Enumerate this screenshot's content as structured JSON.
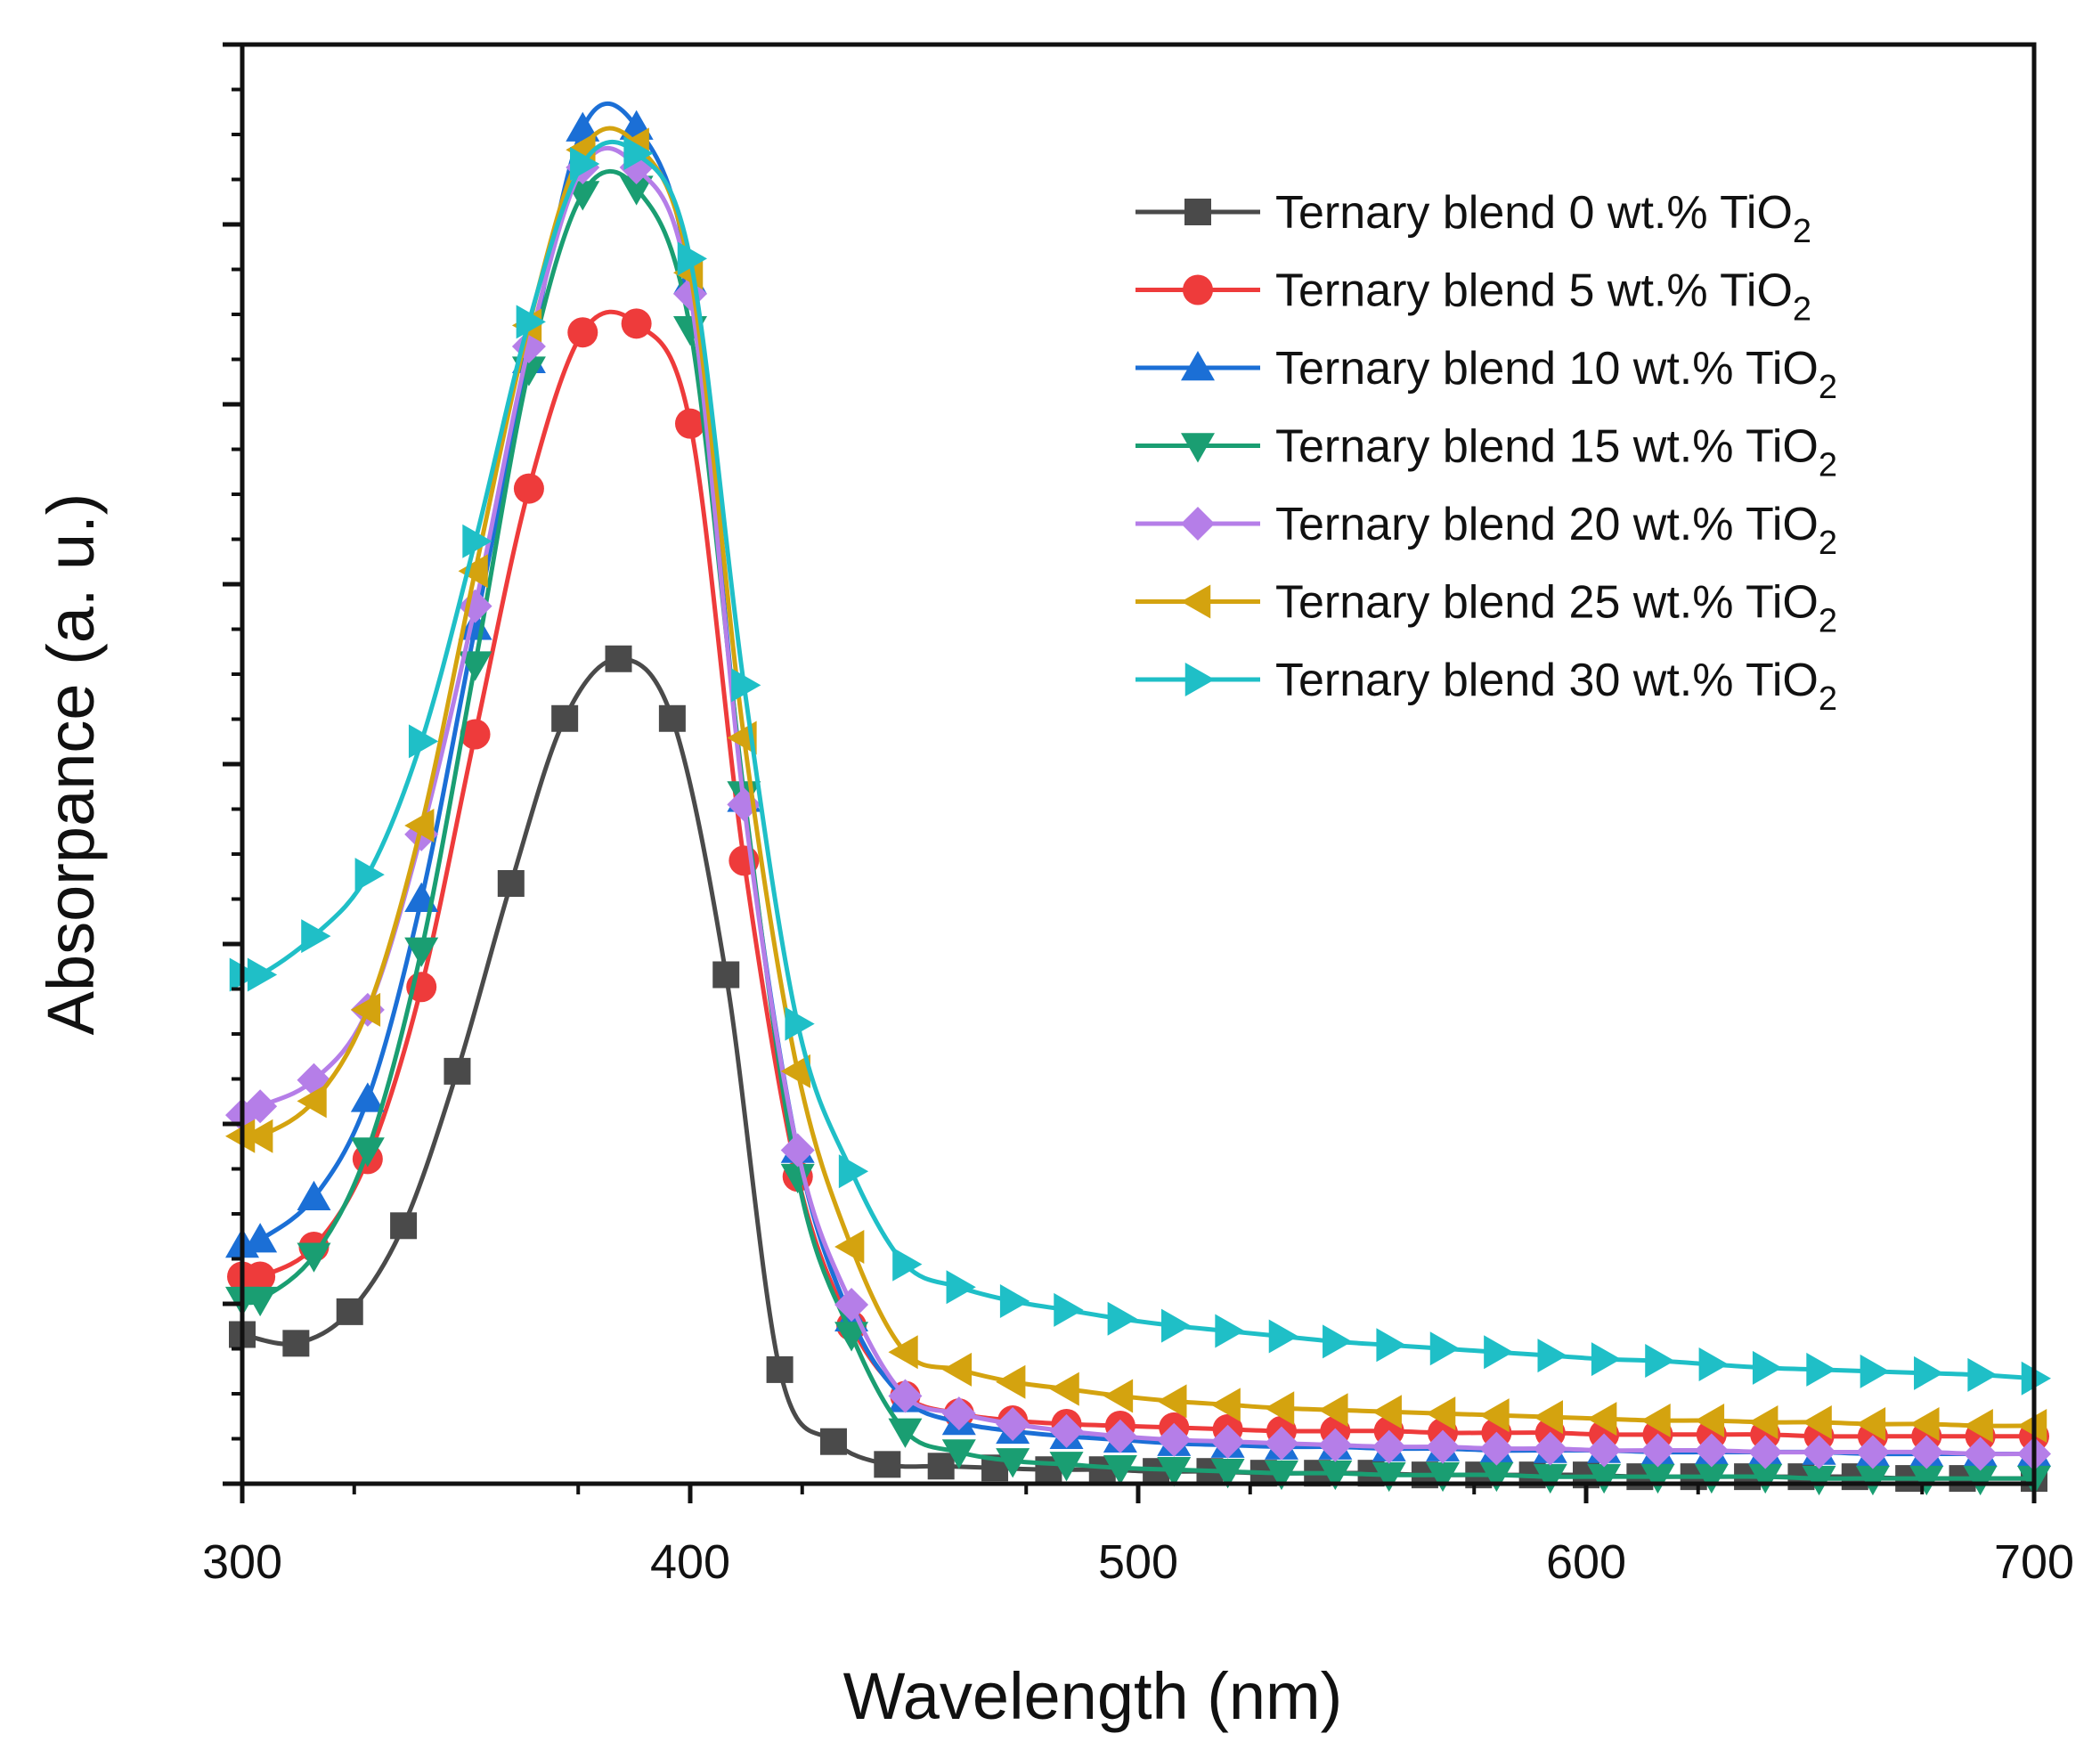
{
  "chart_data": {
    "type": "line",
    "title": "",
    "xlabel": "Wavelength (nm)",
    "ylabel": "Absorpance (a. u.)",
    "xlim": [
      300,
      700
    ],
    "ylim": [
      0,
      0.82
    ],
    "xticks": [
      300,
      400,
      500,
      600,
      700
    ],
    "y_tick_labels_shown": false,
    "grid": false,
    "legend_position": "top-right",
    "series": [
      {
        "name": "Ternary blend 0 wt.% TiO2",
        "legend_prefix": "Ternary blend 0 wt.% TiO",
        "legend_sub": "2",
        "color": "#4a4a4a",
        "marker": "square",
        "x": [
          300,
          312,
          324,
          336,
          348,
          360,
          372,
          384,
          396,
          408,
          420,
          432,
          444,
          456,
          468,
          480,
          492,
          504,
          516,
          528,
          540,
          552,
          564,
          576,
          588,
          600,
          612,
          624,
          636,
          648,
          660,
          672,
          684,
          700
        ],
        "y": [
          0.085,
          0.08,
          0.098,
          0.147,
          0.235,
          0.342,
          0.436,
          0.47,
          0.436,
          0.29,
          0.065,
          0.024,
          0.011,
          0.01,
          0.009,
          0.008,
          0.008,
          0.007,
          0.007,
          0.006,
          0.006,
          0.006,
          0.005,
          0.005,
          0.005,
          0.005,
          0.004,
          0.004,
          0.004,
          0.004,
          0.004,
          0.003,
          0.003,
          0.003
        ]
      },
      {
        "name": "Ternary blend 5 wt.% TiO2",
        "legend_prefix": "Ternary blend 5 wt.% TiO",
        "legend_sub": "2",
        "color": "#ee3b3b",
        "marker": "circle",
        "x": [
          300,
          304,
          316,
          328,
          340,
          352,
          364,
          376,
          388,
          400,
          412,
          424,
          436,
          448,
          460,
          472,
          484,
          496,
          508,
          520,
          532,
          544,
          556,
          568,
          580,
          592,
          604,
          616,
          628,
          640,
          652,
          664,
          676,
          688,
          700
        ],
        "y": [
          0.118,
          0.118,
          0.135,
          0.185,
          0.283,
          0.427,
          0.567,
          0.656,
          0.661,
          0.604,
          0.355,
          0.175,
          0.09,
          0.05,
          0.04,
          0.036,
          0.034,
          0.033,
          0.032,
          0.031,
          0.03,
          0.03,
          0.03,
          0.029,
          0.029,
          0.029,
          0.028,
          0.028,
          0.028,
          0.028,
          0.027,
          0.027,
          0.027,
          0.027,
          0.027
        ]
      },
      {
        "name": "Ternary blend 10 wt.% TiO2",
        "legend_prefix": "Ternary blend 10 wt.% TiO",
        "legend_sub": "2",
        "color": "#1b6fd6",
        "marker": "triangle-up",
        "x": [
          300,
          304,
          316,
          328,
          340,
          352,
          364,
          376,
          388,
          400,
          412,
          424,
          436,
          448,
          460,
          472,
          484,
          496,
          508,
          520,
          532,
          544,
          556,
          568,
          580,
          592,
          604,
          616,
          628,
          640,
          652,
          664,
          676,
          688,
          700
        ],
        "y": [
          0.136,
          0.139,
          0.163,
          0.219,
          0.333,
          0.488,
          0.64,
          0.772,
          0.773,
          0.685,
          0.39,
          0.19,
          0.094,
          0.048,
          0.035,
          0.03,
          0.027,
          0.025,
          0.023,
          0.022,
          0.021,
          0.021,
          0.02,
          0.02,
          0.019,
          0.019,
          0.019,
          0.018,
          0.018,
          0.018,
          0.018,
          0.017,
          0.017,
          0.017,
          0.017
        ]
      },
      {
        "name": "Ternary blend 15 wt.% TiO2",
        "legend_prefix": "Ternary blend 15 wt.% TiO",
        "legend_sub": "2",
        "color": "#1a9e72",
        "marker": "triangle-down",
        "x": [
          300,
          304,
          316,
          328,
          340,
          352,
          364,
          376,
          388,
          400,
          412,
          424,
          436,
          448,
          460,
          472,
          484,
          496,
          508,
          520,
          532,
          544,
          556,
          568,
          580,
          592,
          604,
          616,
          628,
          640,
          652,
          664,
          676,
          688,
          700
        ],
        "y": [
          0.105,
          0.105,
          0.13,
          0.19,
          0.304,
          0.467,
          0.635,
          0.735,
          0.738,
          0.658,
          0.393,
          0.175,
          0.085,
          0.03,
          0.018,
          0.013,
          0.011,
          0.009,
          0.008,
          0.007,
          0.006,
          0.006,
          0.005,
          0.005,
          0.005,
          0.004,
          0.004,
          0.004,
          0.004,
          0.004,
          0.003,
          0.003,
          0.003,
          0.003,
          0.003
        ]
      },
      {
        "name": "Ternary blend 20 wt.% TiO2",
        "legend_prefix": "Ternary blend 20 wt.% TiO",
        "legend_sub": "2",
        "color": "#b57ee8",
        "marker": "diamond",
        "x": [
          300,
          304,
          316,
          328,
          340,
          352,
          364,
          376,
          388,
          400,
          412,
          424,
          436,
          448,
          460,
          472,
          484,
          496,
          508,
          520,
          532,
          544,
          556,
          568,
          580,
          592,
          604,
          616,
          628,
          640,
          652,
          664,
          676,
          688,
          700
        ],
        "y": [
          0.21,
          0.215,
          0.23,
          0.27,
          0.37,
          0.5,
          0.648,
          0.75,
          0.75,
          0.678,
          0.387,
          0.19,
          0.102,
          0.05,
          0.04,
          0.034,
          0.03,
          0.027,
          0.025,
          0.024,
          0.023,
          0.022,
          0.021,
          0.021,
          0.02,
          0.02,
          0.019,
          0.019,
          0.019,
          0.018,
          0.018,
          0.018,
          0.018,
          0.017,
          0.017
        ]
      },
      {
        "name": "Ternary blend 25 wt.% TiO2",
        "legend_prefix": "Ternary blend 25 wt.% TiO",
        "legend_sub": "2",
        "color": "#d4a30f",
        "marker": "triangle-left",
        "x": [
          300,
          304,
          316,
          328,
          340,
          352,
          364,
          376,
          388,
          400,
          412,
          424,
          436,
          448,
          460,
          472,
          484,
          496,
          508,
          520,
          532,
          544,
          556,
          568,
          580,
          592,
          604,
          616,
          628,
          640,
          652,
          664,
          676,
          688,
          700
        ],
        "y": [
          0.198,
          0.198,
          0.218,
          0.27,
          0.375,
          0.52,
          0.66,
          0.76,
          0.763,
          0.69,
          0.425,
          0.235,
          0.135,
          0.075,
          0.065,
          0.058,
          0.054,
          0.05,
          0.047,
          0.045,
          0.043,
          0.042,
          0.041,
          0.04,
          0.039,
          0.038,
          0.037,
          0.036,
          0.036,
          0.035,
          0.035,
          0.034,
          0.034,
          0.033,
          0.033
        ]
      },
      {
        "name": "Ternary blend 30 wt.% TiO2",
        "legend_prefix": "Ternary blend 30 wt.% TiO",
        "legend_sub": "2",
        "color": "#1fbfc7",
        "marker": "triangle-right",
        "x": [
          300,
          304,
          316,
          328,
          340,
          352,
          364,
          376,
          388,
          400,
          412,
          424,
          436,
          448,
          460,
          472,
          484,
          496,
          508,
          520,
          532,
          544,
          556,
          568,
          580,
          592,
          604,
          616,
          628,
          640,
          652,
          664,
          676,
          688,
          700
        ],
        "y": [
          0.29,
          0.29,
          0.312,
          0.347,
          0.423,
          0.537,
          0.662,
          0.752,
          0.758,
          0.698,
          0.455,
          0.262,
          0.178,
          0.125,
          0.112,
          0.104,
          0.099,
          0.094,
          0.09,
          0.087,
          0.084,
          0.081,
          0.079,
          0.077,
          0.075,
          0.073,
          0.071,
          0.07,
          0.068,
          0.066,
          0.065,
          0.064,
          0.063,
          0.062,
          0.06
        ]
      }
    ]
  }
}
